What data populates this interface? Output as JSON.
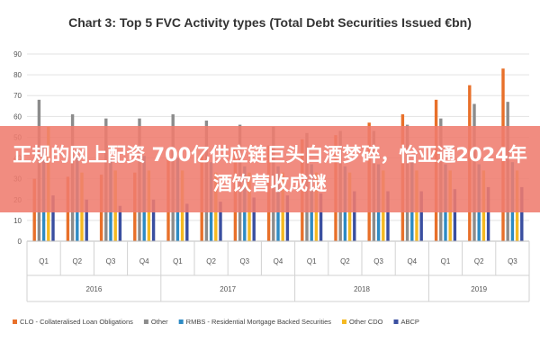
{
  "banner": {
    "headline": "正规的网上配资 700亿供应链巨头白酒梦碎，怡亚通2024年酒饮营收成谜"
  },
  "chart_data": {
    "type": "bar",
    "title": "Chart 3: Top 5 FVC Activity types (Total Debt Securities Issued €bn)",
    "xlabel": "",
    "ylabel": "",
    "ylim": [
      0,
      90
    ],
    "yticks": [
      0,
      10,
      20,
      30,
      40,
      50,
      60,
      70,
      80,
      90
    ],
    "grid": true,
    "legend_position": "bottom",
    "categories": [
      "Q1",
      "Q2",
      "Q3",
      "Q4",
      "Q1",
      "Q2",
      "Q3",
      "Q4",
      "Q1",
      "Q2",
      "Q3",
      "Q4",
      "Q1",
      "Q2",
      "Q3"
    ],
    "groups": [
      {
        "label": "2016",
        "start": 0,
        "end": 3
      },
      {
        "label": "2017",
        "start": 4,
        "end": 7
      },
      {
        "label": "2018",
        "start": 8,
        "end": 11
      },
      {
        "label": "2019",
        "start": 12,
        "end": 14
      }
    ],
    "series": [
      {
        "name": "CLO - Collateralised Loan Obligations",
        "color": "#e8702a",
        "values": [
          30,
          31,
          32,
          33,
          40,
          42,
          45,
          46,
          49,
          51,
          57,
          61,
          68,
          75,
          83
        ]
      },
      {
        "name": "Other",
        "color": "#8c8c8c",
        "values": [
          68,
          61,
          59,
          59,
          61,
          58,
          56,
          55,
          52,
          53,
          53,
          56,
          59,
          66,
          67
        ]
      },
      {
        "name": "RMBS - Residential Mortgage Backed Securities",
        "color": "#2e8bc4",
        "values": [
          45,
          44,
          40,
          41,
          40,
          38,
          36,
          36,
          37,
          36,
          37,
          38,
          37,
          37,
          38
        ]
      },
      {
        "name": "Other CDO",
        "color": "#f5b921",
        "values": [
          55,
          33,
          34,
          34,
          34,
          33,
          33,
          33,
          33,
          33,
          34,
          34,
          34,
          34,
          34
        ]
      },
      {
        "name": "ABCP",
        "color": "#3a4fa0",
        "values": [
          22,
          20,
          17,
          20,
          18,
          19,
          21,
          22,
          23,
          24,
          24,
          24,
          25,
          26,
          26
        ]
      }
    ]
  }
}
